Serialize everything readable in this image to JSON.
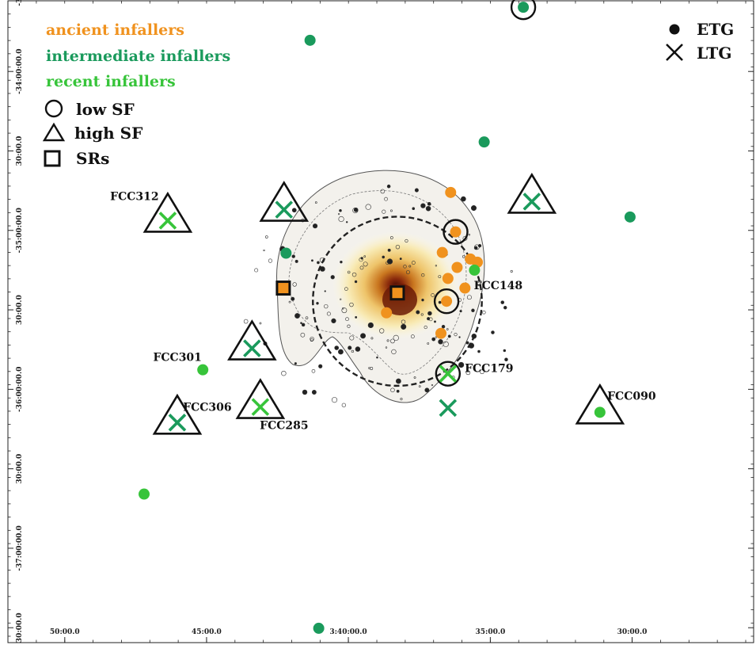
{
  "chart_data": {
    "type": "scatter",
    "title": "",
    "xlabel": "",
    "ylabel": "",
    "xlim": [
      3.8667,
      3.4286
    ],
    "ylim": [
      -37.5938,
      -33.5553
    ],
    "x_tick_labels": [
      "50:00.0",
      "45:00.0",
      "3:40:00.0",
      "35:00.0",
      "30:00.0"
    ],
    "x_tick_values": [
      3.8333,
      3.75,
      3.6667,
      3.5833,
      3.5
    ],
    "y_tick_labels": [
      "-33:30:",
      "-34:00:00.0",
      "30:00.0",
      "-35:00:00.0",
      "30:00.0",
      "-36:00:00.0",
      "30:00.0",
      "-37:00:00.0",
      "30:00.0"
    ],
    "y_tick_values": [
      -33.5,
      -34.0,
      -34.5,
      -35.0,
      -35.5,
      -36.0,
      -36.5,
      -37.0,
      -37.5
    ],
    "colors": {
      "ancient": "#f0921e",
      "intermediate": "#1a9a5c",
      "recent": "#37c43a",
      "dashed_circle": "#222222",
      "marker_outline": "#111111"
    },
    "legend": {
      "classes": [
        {
          "label": "ancient infallers",
          "color_key": "ancient"
        },
        {
          "label": "intermediate infallers",
          "color_key": "intermediate"
        },
        {
          "label": "recent infallers",
          "color_key": "recent"
        }
      ],
      "markers": [
        {
          "label": "low SF",
          "symbol": "circle"
        },
        {
          "label": "high SF",
          "symbol": "triangle"
        },
        {
          "label": "SRs",
          "symbol": "square"
        }
      ],
      "types": [
        {
          "label": "ETG",
          "symbol": "dot"
        },
        {
          "label": "LTG",
          "symbol": "x"
        }
      ],
      "placement_classes": "top-left",
      "placement_types": "top-right"
    },
    "core": {
      "x": 3.6379,
      "y": -35.4458,
      "r_deg": 0.7
    },
    "points": [
      {
        "x": 3.5639,
        "y": -33.5959,
        "cls": "intermediate",
        "shape": "dot",
        "sf": "low"
      },
      {
        "x": 3.6892,
        "y": -33.8037,
        "cls": "intermediate",
        "shape": "dot"
      },
      {
        "x": 3.5869,
        "y": -34.4436,
        "cls": "intermediate",
        "shape": "dot"
      },
      {
        "x": 3.5012,
        "y": -34.9155,
        "cls": "intermediate",
        "shape": "dot"
      },
      {
        "x": 3.7033,
        "y": -35.1433,
        "cls": "intermediate",
        "shape": "dot"
      },
      {
        "x": 3.6841,
        "y": -37.5035,
        "cls": "intermediate",
        "shape": "dot"
      },
      {
        "x": 3.7867,
        "y": -36.6592,
        "cls": "recent",
        "shape": "dot"
      },
      {
        "x": 3.7522,
        "y": -35.877,
        "cls": "recent",
        "shape": "dot",
        "label": "FCC301"
      },
      {
        "x": 3.6066,
        "y": -34.761,
        "cls": "ancient",
        "shape": "dot"
      },
      {
        "x": 3.6037,
        "y": -35.0093,
        "cls": "ancient",
        "shape": "dot",
        "sf": "low"
      },
      {
        "x": 3.6115,
        "y": -35.1392,
        "cls": "ancient",
        "shape": "dot"
      },
      {
        "x": 3.5909,
        "y": -35.2003,
        "cls": "ancient",
        "shape": "dot"
      },
      {
        "x": 3.595,
        "y": -35.18,
        "cls": "ancient",
        "shape": "dot"
      },
      {
        "x": 3.6028,
        "y": -35.233,
        "cls": "ancient",
        "shape": "dot"
      },
      {
        "x": 3.6082,
        "y": -35.3025,
        "cls": "ancient",
        "shape": "dot"
      },
      {
        "x": 3.5982,
        "y": -35.3629,
        "cls": "ancient",
        "shape": "dot"
      },
      {
        "x": 3.609,
        "y": -35.4459,
        "cls": "ancient",
        "shape": "dot",
        "sf": "low"
      },
      {
        "x": 3.6123,
        "y": -35.648,
        "cls": "ancient",
        "shape": "dot"
      },
      {
        "x": 3.6443,
        "y": -35.5184,
        "cls": "ancient",
        "shape": "dot"
      },
      {
        "x": 3.5926,
        "y": -35.25,
        "cls": "recent",
        "shape": "dot",
        "label": "FCC148"
      },
      {
        "x": 3.5189,
        "y": -36.1447,
        "cls": "recent",
        "shape": "dot",
        "sf": "high",
        "label": "FCC090"
      },
      {
        "x": 3.6082,
        "y": -35.9019,
        "cls": "recent",
        "shape": "x",
        "sf": "low",
        "label": "FCC179"
      },
      {
        "x": 3.6082,
        "y": -36.1171,
        "cls": "intermediate",
        "shape": "x"
      },
      {
        "x": 3.7728,
        "y": -34.9386,
        "cls": "recent",
        "shape": "x",
        "sf": "high",
        "label": "FCC312"
      },
      {
        "x": 3.7045,
        "y": -34.8695,
        "cls": "intermediate",
        "shape": "x",
        "sf": "high"
      },
      {
        "x": 3.5589,
        "y": -34.819,
        "cls": "intermediate",
        "shape": "x",
        "sf": "high"
      },
      {
        "x": 3.7233,
        "y": -35.742,
        "cls": "intermediate",
        "shape": "x",
        "sf": "high"
      },
      {
        "x": 3.7672,
        "y": -36.2092,
        "cls": "intermediate",
        "shape": "x",
        "sf": "high",
        "label": "FCC306"
      },
      {
        "x": 3.7184,
        "y": -36.111,
        "cls": "recent",
        "shape": "x",
        "sf": "high",
        "label": "FCC285"
      },
      {
        "x": 3.7049,
        "y": -35.3629,
        "cls": "ancient",
        "shape": "square"
      },
      {
        "x": 3.6379,
        "y": -35.3936,
        "cls": "ancient",
        "shape": "square"
      }
    ]
  }
}
